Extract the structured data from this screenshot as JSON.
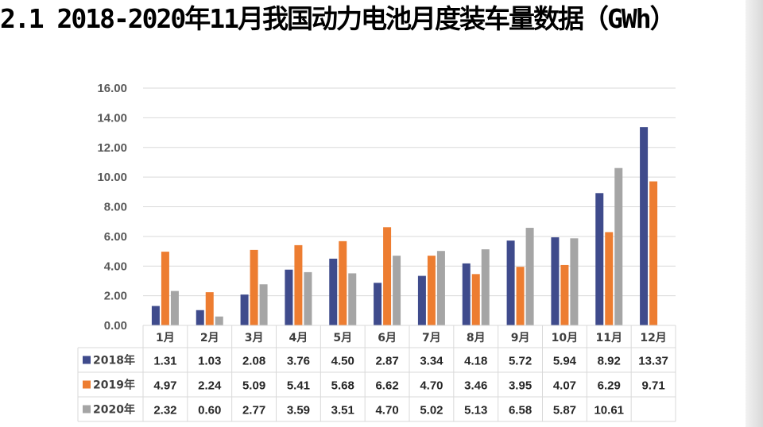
{
  "title": "2.1 2018-2020年11月我国动力电池月度装车量数据（GWh）",
  "colors": {
    "background": "#ffffff",
    "gridline": "#d9d9d9",
    "table_border": "#d9d9d9"
  },
  "chart_data": {
    "type": "bar",
    "title": "2.1 2018-2020年11月我国动力电池月度装车量数据（GWh）",
    "xlabel": "",
    "ylabel": "",
    "ylim": [
      0,
      16
    ],
    "ytick_step": 2,
    "ytick_labels": [
      "0.00",
      "2.00",
      "4.00",
      "6.00",
      "8.00",
      "10.00",
      "12.00",
      "14.00",
      "16.00"
    ],
    "grid": true,
    "legend": "data-table",
    "categories": [
      "1月",
      "2月",
      "3月",
      "4月",
      "5月",
      "6月",
      "7月",
      "8月",
      "9月",
      "10月",
      "11月",
      "12月"
    ],
    "series": [
      {
        "name": "2018年",
        "color": "#3f4b8c",
        "values": [
          1.31,
          1.03,
          2.08,
          3.76,
          4.5,
          2.87,
          3.34,
          4.18,
          5.72,
          5.94,
          8.92,
          13.37
        ],
        "labels": [
          "1.31",
          "1.03",
          "2.08",
          "3.76",
          "4.50",
          "2.87",
          "3.34",
          "4.18",
          "5.72",
          "5.94",
          "8.92",
          "13.37"
        ]
      },
      {
        "name": "2019年",
        "color": "#ed7d31",
        "values": [
          4.97,
          2.24,
          5.09,
          5.41,
          5.68,
          6.62,
          4.7,
          3.46,
          3.95,
          4.07,
          6.29,
          9.71
        ],
        "labels": [
          "4.97",
          "2.24",
          "5.09",
          "5.41",
          "5.68",
          "6.62",
          "4.70",
          "3.46",
          "3.95",
          "4.07",
          "6.29",
          "9.71"
        ]
      },
      {
        "name": "2020年",
        "color": "#a5a5a5",
        "values": [
          2.32,
          0.6,
          2.77,
          3.59,
          3.51,
          4.7,
          5.02,
          5.13,
          6.58,
          5.87,
          10.61,
          null
        ],
        "labels": [
          "2.32",
          "0.60",
          "2.77",
          "3.59",
          "3.51",
          "4.70",
          "5.02",
          "5.13",
          "6.58",
          "5.87",
          "10.61",
          ""
        ]
      }
    ]
  }
}
